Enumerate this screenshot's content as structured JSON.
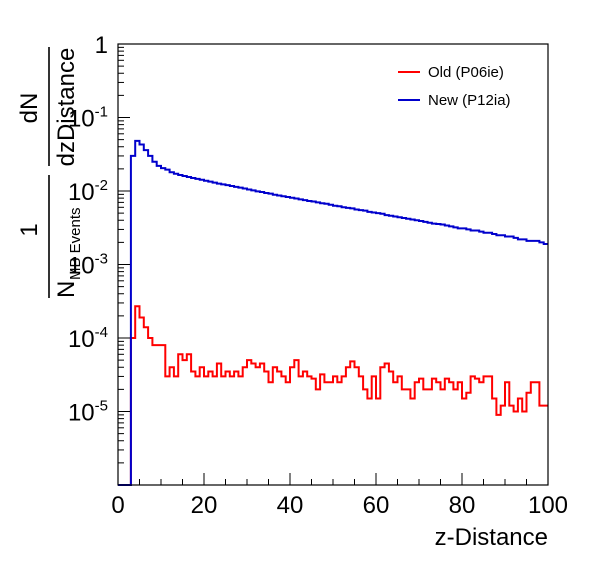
{
  "chart_data": {
    "type": "line",
    "style": "step-histogram",
    "x_scale": "linear",
    "y_scale": "log",
    "xlim": [
      0,
      100
    ],
    "ylim": [
      1e-06,
      1
    ],
    "xticks": [
      0,
      20,
      40,
      60,
      80,
      100
    ],
    "xtick_labels": [
      "0",
      "20",
      "40",
      "60",
      "80",
      "100"
    ],
    "yticks": [
      1,
      0.1,
      0.01,
      0.001,
      0.0001,
      1e-05
    ],
    "ytick_labels": [
      {
        "base": "1",
        "exp": ""
      },
      {
        "base": "10",
        "exp": "-1"
      },
      {
        "base": "10",
        "exp": "-2"
      },
      {
        "base": "10",
        "exp": "-3"
      },
      {
        "base": "10",
        "exp": "-4"
      },
      {
        "base": "10",
        "exp": "-5"
      }
    ],
    "xlabel": "z-Distance",
    "ylabel": {
      "prefactor_numerator": "1",
      "prefactor_denominator": "N",
      "prefactor_subscript": "MB Events",
      "fraction_numerator": "dN",
      "fraction_denominator": "dzDistance"
    },
    "legend_position": "top-right",
    "bin_width": 1,
    "series": [
      {
        "name": "Old (P06ie)",
        "color": "#ff0000",
        "x_start": 0,
        "values": [
          0,
          0,
          0,
          0.0001,
          0.00027,
          0.00019,
          0.00014,
          0.0001,
          8e-05,
          8e-05,
          8e-05,
          3e-05,
          4e-05,
          3e-05,
          6e-05,
          5e-05,
          6e-05,
          3.5e-05,
          3e-05,
          4e-05,
          3e-05,
          3.5e-05,
          3e-05,
          4.5e-05,
          3e-05,
          3.5e-05,
          3e-05,
          3.5e-05,
          3e-05,
          4e-05,
          5e-05,
          4.5e-05,
          4e-05,
          4.5e-05,
          3.5e-05,
          2.5e-05,
          4e-05,
          3.5e-05,
          3e-05,
          2.5e-05,
          4e-05,
          5e-05,
          3e-05,
          3.5e-05,
          3e-05,
          2.8e-05,
          2e-05,
          3.2e-05,
          2.5e-05,
          2.5e-05,
          3e-05,
          2.5e-05,
          3e-05,
          4e-05,
          4.8e-05,
          4e-05,
          3e-05,
          2e-05,
          1.5e-05,
          3e-05,
          1.5e-05,
          4e-05,
          4.5e-05,
          3.5e-05,
          2.5e-05,
          3e-05,
          2e-05,
          2e-05,
          1.5e-05,
          2.5e-05,
          2.8e-05,
          2e-05,
          2e-05,
          2.8e-05,
          2.5e-05,
          2e-05,
          2.8e-05,
          2.5e-05,
          2e-05,
          2.5e-05,
          1.5e-05,
          1.8e-05,
          3e-05,
          2.8e-05,
          2.5e-05,
          3e-05,
          3e-05,
          1.5e-05,
          9e-06,
          1.2e-05,
          2.5e-05,
          1.2e-05,
          1e-05,
          1.5e-05,
          1e-05,
          1.8e-05,
          2.5e-05,
          2.5e-05,
          1.2e-05,
          1.2e-05
        ]
      },
      {
        "name": "New (P12ia)",
        "color": "#0000cc",
        "x_start": 0,
        "values": [
          0,
          0,
          0,
          0.03,
          0.048,
          0.043,
          0.036,
          0.03,
          0.025,
          0.022,
          0.0205,
          0.0195,
          0.018,
          0.0172,
          0.0165,
          0.016,
          0.0155,
          0.015,
          0.0146,
          0.0142,
          0.0138,
          0.0134,
          0.013,
          0.0126,
          0.0123,
          0.012,
          0.0117,
          0.0114,
          0.0111,
          0.0108,
          0.0105,
          0.0102,
          0.0099,
          0.0097,
          0.0094,
          0.0092,
          0.0089,
          0.0087,
          0.0085,
          0.0083,
          0.0081,
          0.0079,
          0.0077,
          0.0075,
          0.0073,
          0.0072,
          0.007,
          0.0068,
          0.0067,
          0.0065,
          0.0063,
          0.0062,
          0.006,
          0.0059,
          0.0058,
          0.0056,
          0.0055,
          0.0054,
          0.0052,
          0.0051,
          0.005,
          0.0049,
          0.0047,
          0.0046,
          0.0045,
          0.0044,
          0.0043,
          0.0042,
          0.0041,
          0.004,
          0.0039,
          0.0038,
          0.0037,
          0.0036,
          0.00355,
          0.0035,
          0.0034,
          0.0033,
          0.0032,
          0.0031,
          0.0031,
          0.003,
          0.0029,
          0.0029,
          0.0028,
          0.0027,
          0.0027,
          0.0026,
          0.0025,
          0.0025,
          0.0024,
          0.0024,
          0.0023,
          0.0022,
          0.0022,
          0.0021,
          0.0021,
          0.0021,
          0.002,
          0.0019
        ]
      }
    ]
  }
}
